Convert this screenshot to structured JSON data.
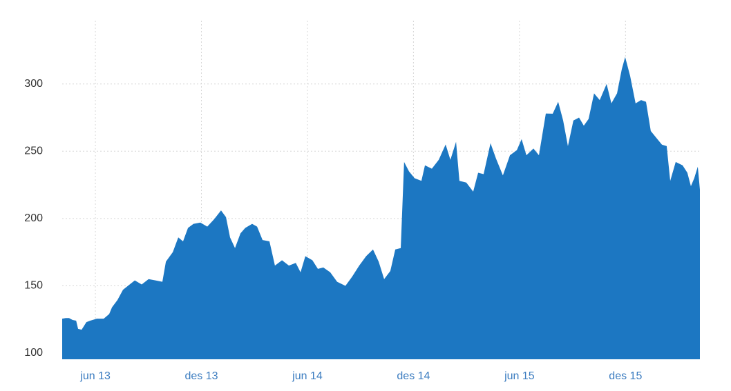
{
  "chart_data": {
    "type": "area",
    "color": "#1c77c2",
    "grid": true,
    "xlim": [
      -1.88,
      34.21
    ],
    "xticks": [
      {
        "value": 0,
        "label": "jun 13"
      },
      {
        "value": 6,
        "label": "des 13"
      },
      {
        "value": 12,
        "label": "jun 14"
      },
      {
        "value": 18,
        "label": "des 14"
      },
      {
        "value": 24,
        "label": "jun 15"
      },
      {
        "value": 30,
        "label": "des 15"
      }
    ],
    "ylim": [
      95.4,
      347
    ],
    "yticks": [
      100,
      150,
      200,
      250,
      300
    ],
    "x": [
      -1.88,
      -1.68,
      -1.49,
      -1.29,
      -1.09,
      -0.98,
      -0.78,
      -0.51,
      -0.31,
      0.08,
      0.47,
      0.78,
      0.94,
      1.25,
      1.56,
      1.84,
      2.23,
      2.62,
      3.01,
      3.4,
      3.79,
      3.99,
      4.38,
      4.69,
      4.96,
      5.24,
      5.55,
      5.94,
      6.33,
      6.72,
      7.11,
      7.39,
      7.62,
      7.9,
      8.21,
      8.48,
      8.87,
      9.15,
      9.46,
      9.85,
      10.16,
      10.56,
      10.95,
      11.34,
      11.61,
      11.88,
      12.28,
      12.59,
      12.9,
      13.29,
      13.68,
      14.15,
      14.54,
      14.93,
      15.32,
      15.71,
      16.03,
      16.34,
      16.69,
      16.97,
      17.28,
      17.47,
      17.75,
      18.06,
      18.45,
      18.65,
      19.04,
      19.43,
      19.82,
      20.09,
      20.41,
      20.6,
      20.99,
      21.38,
      21.66,
      21.97,
      22.36,
      22.67,
      23.06,
      23.46,
      23.85,
      24.12,
      24.39,
      24.79,
      25.1,
      25.49,
      25.88,
      26.19,
      26.47,
      26.74,
      27.05,
      27.37,
      27.64,
      27.91,
      28.22,
      28.54,
      28.93,
      29.2,
      29.52,
      29.79,
      29.98,
      30.26,
      30.57,
      30.88,
      31.16,
      31.43,
      31.74,
      32.06,
      32.33,
      32.53,
      32.84,
      33.23,
      33.5,
      33.7,
      33.89,
      34.09,
      34.21
    ],
    "values": [
      125.6,
      126,
      126,
      124.6,
      124.1,
      118,
      117.4,
      123,
      124,
      125.6,
      125.6,
      129,
      134,
      139.5,
      147,
      150,
      154,
      151,
      155,
      154,
      153,
      168,
      175,
      186,
      183,
      193,
      196,
      197,
      194,
      199.5,
      206,
      201,
      186,
      178,
      189,
      193,
      196,
      194,
      184,
      183,
      165,
      169,
      165,
      167,
      160,
      172,
      169,
      162.6,
      163.6,
      160,
      153,
      150,
      157,
      165,
      172,
      177,
      168,
      155,
      161,
      177,
      178,
      242,
      235,
      230,
      228,
      239.5,
      237,
      243.6,
      255,
      243.6,
      257,
      228,
      226.7,
      220,
      234,
      233,
      256,
      244.6,
      232,
      247,
      250.8,
      259,
      247,
      252,
      247,
      278,
      277.9,
      286.7,
      272.8,
      253.8,
      272.8,
      275,
      269,
      274,
      293,
      288,
      300,
      285.6,
      293,
      311,
      320,
      306,
      285.6,
      288,
      286.7,
      265,
      260,
      254.9,
      253.8,
      228,
      242,
      239.5,
      234,
      224,
      230,
      238.5,
      221.5
    ]
  }
}
